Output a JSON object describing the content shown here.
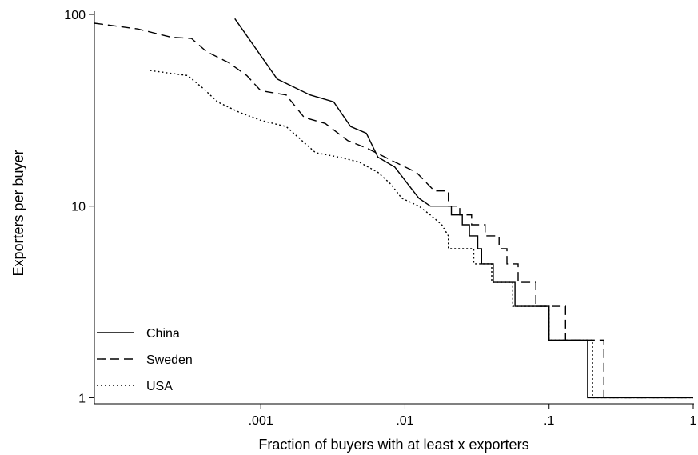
{
  "chart_data": {
    "type": "line",
    "title": "",
    "xlabel": "Fraction of buyers with at least x exporters",
    "ylabel": "Exporters per buyer",
    "xscale": "log",
    "yscale": "log",
    "xlim": [
      7e-05,
      1
    ],
    "ylim": [
      0.93,
      100
    ],
    "x_ticks": [
      {
        "value": 0.001,
        "label": ".001"
      },
      {
        "value": 0.01,
        "label": ".01"
      },
      {
        "value": 0.1,
        "label": ".1"
      },
      {
        "value": 1,
        "label": "1"
      }
    ],
    "y_ticks": [
      {
        "value": 1,
        "label": "1"
      },
      {
        "value": 10,
        "label": "10"
      },
      {
        "value": 100,
        "label": "100"
      }
    ],
    "grid": false,
    "legend_position": "bottom-left",
    "series": [
      {
        "name": "China",
        "dash": "solid",
        "points": [
          [
            0.00066,
            95
          ],
          [
            0.0013,
            46
          ],
          [
            0.0022,
            38
          ],
          [
            0.0032,
            35
          ],
          [
            0.0042,
            26
          ],
          [
            0.0054,
            24
          ],
          [
            0.0065,
            18
          ],
          [
            0.0085,
            16
          ],
          [
            0.0105,
            13
          ],
          [
            0.0125,
            11
          ],
          [
            0.015,
            10
          ],
          [
            0.021,
            10
          ],
          [
            0.021,
            9
          ],
          [
            0.025,
            9
          ],
          [
            0.025,
            8
          ],
          [
            0.028,
            8
          ],
          [
            0.028,
            7
          ],
          [
            0.032,
            7
          ],
          [
            0.032,
            6
          ],
          [
            0.034,
            6
          ],
          [
            0.034,
            5
          ],
          [
            0.041,
            5
          ],
          [
            0.041,
            4
          ],
          [
            0.058,
            4
          ],
          [
            0.058,
            3
          ],
          [
            0.1,
            3
          ],
          [
            0.1,
            2
          ],
          [
            0.185,
            2
          ],
          [
            0.185,
            1
          ],
          [
            1,
            1
          ]
        ]
      },
      {
        "name": "Sweden",
        "dash": "dashed",
        "points": [
          [
            7e-05,
            90
          ],
          [
            0.00014,
            84
          ],
          [
            0.00024,
            76
          ],
          [
            0.00033,
            75
          ],
          [
            0.00042,
            64
          ],
          [
            0.0006,
            56
          ],
          [
            0.0008,
            48
          ],
          [
            0.001,
            40
          ],
          [
            0.0015,
            38
          ],
          [
            0.002,
            29
          ],
          [
            0.0028,
            27
          ],
          [
            0.004,
            22
          ],
          [
            0.0055,
            20
          ],
          [
            0.0085,
            17
          ],
          [
            0.012,
            15
          ],
          [
            0.016,
            12
          ],
          [
            0.02,
            12
          ],
          [
            0.02,
            10
          ],
          [
            0.024,
            10
          ],
          [
            0.024,
            9
          ],
          [
            0.029,
            9
          ],
          [
            0.029,
            8
          ],
          [
            0.036,
            8
          ],
          [
            0.036,
            7
          ],
          [
            0.045,
            7
          ],
          [
            0.045,
            6
          ],
          [
            0.051,
            6
          ],
          [
            0.051,
            5
          ],
          [
            0.061,
            5
          ],
          [
            0.061,
            4
          ],
          [
            0.081,
            4
          ],
          [
            0.081,
            3
          ],
          [
            0.13,
            3
          ],
          [
            0.13,
            2
          ],
          [
            0.24,
            2
          ],
          [
            0.24,
            1
          ],
          [
            1,
            1
          ]
        ]
      },
      {
        "name": "USA",
        "dash": "dotted",
        "points": [
          [
            0.00017,
            51
          ],
          [
            0.00031,
            48
          ],
          [
            0.0004,
            41
          ],
          [
            0.0005,
            35
          ],
          [
            0.0007,
            31
          ],
          [
            0.001,
            28
          ],
          [
            0.0015,
            26
          ],
          [
            0.0024,
            19
          ],
          [
            0.0035,
            18
          ],
          [
            0.0048,
            17
          ],
          [
            0.0065,
            15
          ],
          [
            0.008,
            13
          ],
          [
            0.0095,
            11
          ],
          [
            0.0125,
            10
          ],
          [
            0.015,
            9
          ],
          [
            0.018,
            8
          ],
          [
            0.02,
            7
          ],
          [
            0.02,
            6
          ],
          [
            0.03,
            6
          ],
          [
            0.03,
            5
          ],
          [
            0.04,
            5
          ],
          [
            0.04,
            4
          ],
          [
            0.056,
            4
          ],
          [
            0.056,
            3
          ],
          [
            0.1,
            3
          ],
          [
            0.1,
            2
          ],
          [
            0.2,
            2
          ],
          [
            0.2,
            1
          ],
          [
            1,
            1
          ]
        ]
      }
    ]
  }
}
